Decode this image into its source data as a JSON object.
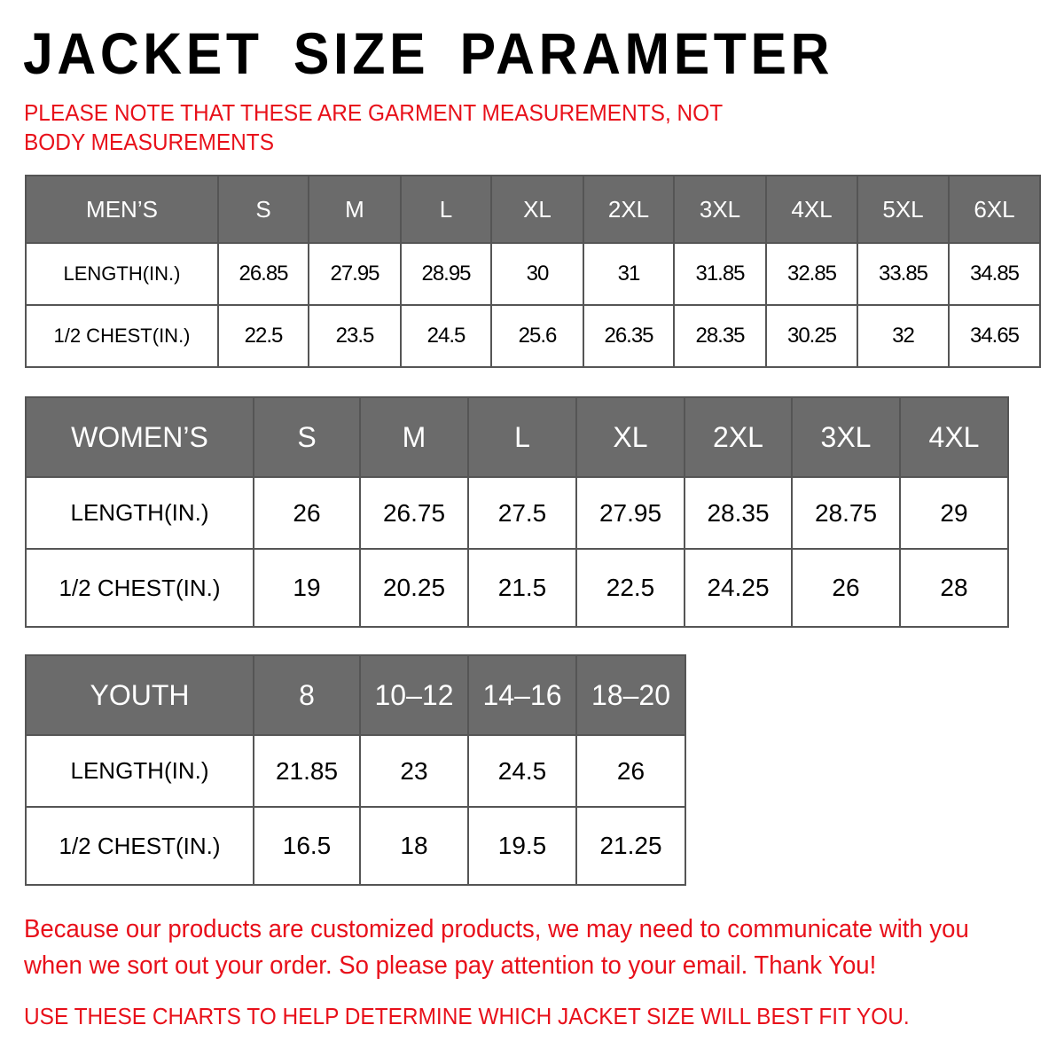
{
  "title": "JACKET SIZE PARAMETER",
  "note": "PLEASE NOTE THAT THESE ARE GARMENT MEASUREMENTS, NOT BODY MEASUREMENTS",
  "colors": {
    "header_bg": "#6b6b6b",
    "note_red": "#e8101a"
  },
  "mens": {
    "header": [
      "MEN’S",
      "S",
      "M",
      "L",
      "XL",
      "2XL",
      "3XL",
      "4XL",
      "5XL",
      "6XL"
    ],
    "rows": [
      [
        "LENGTH(IN.)",
        "26.85",
        "27.95",
        "28.95",
        "30",
        "31",
        "31.85",
        "32.85",
        "33.85",
        "34.85"
      ],
      [
        "1/2 CHEST(IN.)",
        "22.5",
        "23.5",
        "24.5",
        "25.6",
        "26.35",
        "28.35",
        "30.25",
        "32",
        "34.65"
      ]
    ]
  },
  "womens": {
    "header": [
      "WOMEN’S",
      "S",
      "M",
      "L",
      "XL",
      "2XL",
      "3XL",
      "4XL"
    ],
    "rows": [
      [
        "LENGTH(IN.)",
        "26",
        "26.75",
        "27.5",
        "27.95",
        "28.35",
        "28.75",
        "29"
      ],
      [
        "1/2 CHEST(IN.)",
        "19",
        "20.25",
        "21.5",
        "22.5",
        "24.25",
        "26",
        "28"
      ]
    ]
  },
  "youth": {
    "header": [
      "YOUTH",
      "8",
      "10–12",
      "14–16",
      "18–20"
    ],
    "rows": [
      [
        "LENGTH(IN.)",
        "21.85",
        "23",
        "24.5",
        "26"
      ],
      [
        "1/2 CHEST(IN.)",
        "16.5",
        "18",
        "19.5",
        "21.25"
      ]
    ]
  },
  "footer": {
    "message": "Because our products are customized products, we may need to communicate with you when we sort out your order. So please pay attention to your email. Thank You!",
    "advice": "USE THESE CHARTS TO HELP DETERMINE WHICH JACKET SIZE WILL BEST FIT YOU."
  }
}
